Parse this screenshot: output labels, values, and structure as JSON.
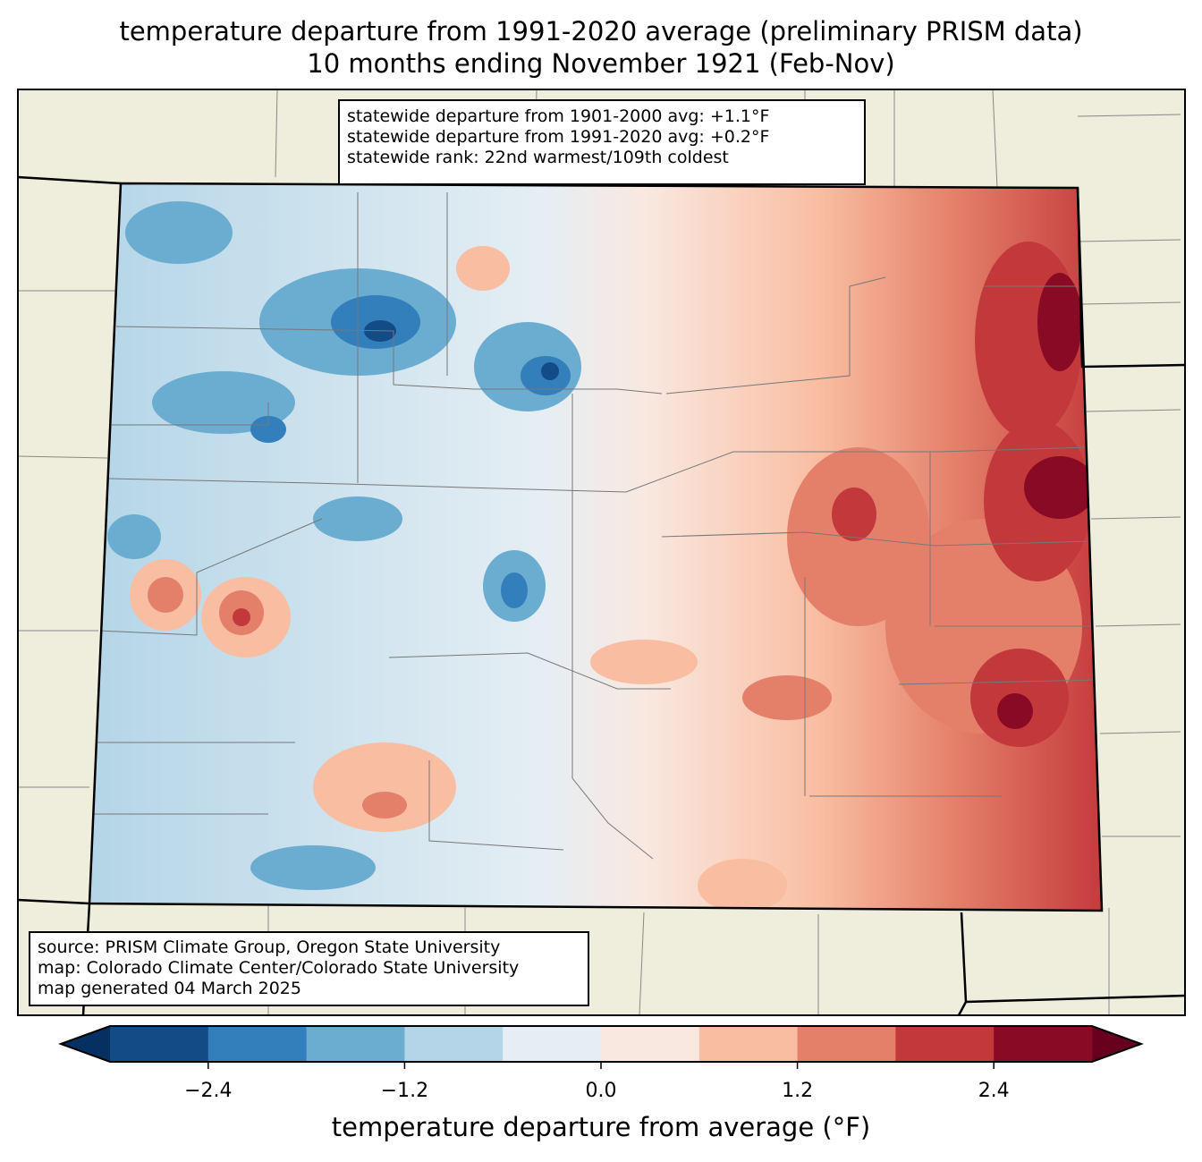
{
  "title_line1": "temperature departure from 1991-2020 average (preliminary PRISM data)",
  "title_line2": "10 months ending November 1921 (Feb-Nov)",
  "stats_box": [
    "statewide departure from 1901-2000 avg: +1.1°F",
    "statewide departure from 1991-2020 avg: +0.2°F",
    "statewide rank: 22nd warmest/109th coldest"
  ],
  "source_box": [
    "source: PRISM Climate Group, Oregon State University",
    "map: Colorado Climate Center/Colorado State University",
    "map generated 04 March 2025"
  ],
  "chart_data": {
    "type": "heatmap",
    "region": "Colorado",
    "colorbar": {
      "label": "temperature departure from average (°F)",
      "levels": [
        -3.0,
        -2.4,
        -1.8,
        -1.2,
        -0.6,
        0.0,
        0.6,
        1.2,
        1.8,
        2.4,
        3.0
      ],
      "colors": [
        "#134b87",
        "#327fbb",
        "#6bacd1",
        "#b3d5e7",
        "#e5eef4",
        "#f9e8e0",
        "#f9bda1",
        "#e4806a",
        "#c3383a",
        "#890a25"
      ],
      "extend_low_color": "#053061",
      "extend_high_color": "#67001f",
      "ticks": [
        -2.4,
        -1.2,
        0.0,
        1.2,
        2.4
      ],
      "tick_labels": [
        "−2.4",
        "−1.2",
        "0.0",
        "1.2",
        "2.4"
      ]
    }
  }
}
